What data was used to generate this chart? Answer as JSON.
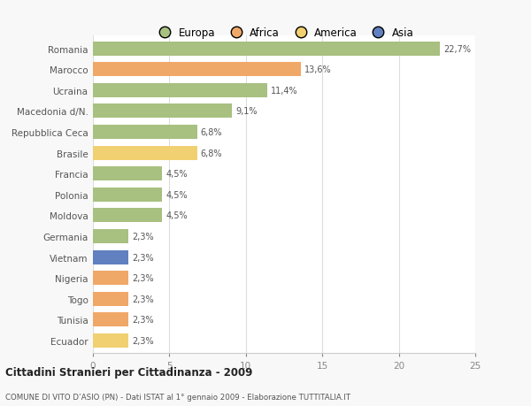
{
  "countries": [
    "Romania",
    "Marocco",
    "Ucraina",
    "Macedonia d/N.",
    "Repubblica Ceca",
    "Brasile",
    "Francia",
    "Polonia",
    "Moldova",
    "Germania",
    "Vietnam",
    "Nigeria",
    "Togo",
    "Tunisia",
    "Ecuador"
  ],
  "values": [
    22.7,
    13.6,
    11.4,
    9.1,
    6.8,
    6.8,
    4.5,
    4.5,
    4.5,
    2.3,
    2.3,
    2.3,
    2.3,
    2.3,
    2.3
  ],
  "labels": [
    "22,7%",
    "13,6%",
    "11,4%",
    "9,1%",
    "6,8%",
    "6,8%",
    "4,5%",
    "4,5%",
    "4,5%",
    "2,3%",
    "2,3%",
    "2,3%",
    "2,3%",
    "2,3%",
    "2,3%"
  ],
  "colors": [
    "#a8c080",
    "#f0a868",
    "#a8c080",
    "#a8c080",
    "#a8c080",
    "#f0d070",
    "#a8c080",
    "#a8c080",
    "#a8c080",
    "#a8c080",
    "#6080c0",
    "#f0a868",
    "#f0a868",
    "#f0a868",
    "#f0d070"
  ],
  "legend_labels": [
    "Europa",
    "Africa",
    "America",
    "Asia"
  ],
  "legend_colors": [
    "#a8c080",
    "#f0a868",
    "#f0d070",
    "#6080c0"
  ],
  "title": "Cittadini Stranieri per Cittadinanza - 2009",
  "subtitle": "COMUNE DI VITO D’ASIO (PN) - Dati ISTAT al 1° gennaio 2009 - Elaborazione TUTTITALIA.IT",
  "xlim": [
    0,
    25
  ],
  "xticks": [
    0,
    5,
    10,
    15,
    20,
    25
  ],
  "background_color": "#f8f8f8",
  "plot_bg": "#ffffff"
}
